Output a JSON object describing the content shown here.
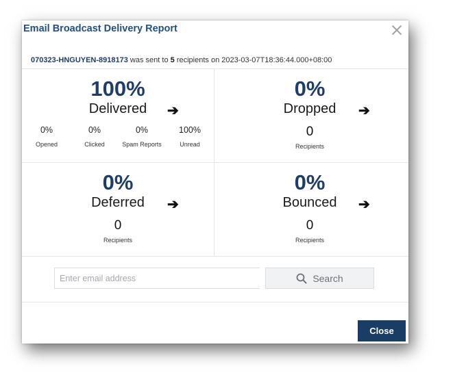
{
  "dialog": {
    "title": "Email Broadcast Delivery Report",
    "summary": {
      "reference": "070323-HNGUYEN-8918173",
      "text_sent_to": " was sent to ",
      "recipient_count": "5",
      "text_recipients_on": " recipients on ",
      "timestamp": "2023-03-07T18:36:44.000+08:00"
    }
  },
  "panels": {
    "delivered": {
      "percent": "100%",
      "label": "Delivered",
      "metrics": [
        {
          "value": "0%",
          "label": "Opened"
        },
        {
          "value": "0%",
          "label": "Clicked"
        },
        {
          "value": "0%",
          "label": "Spam Reports"
        },
        {
          "value": "100%",
          "label": "Unread"
        }
      ]
    },
    "dropped": {
      "percent": "0%",
      "label": "Dropped",
      "count": "0",
      "count_label": "Recipients"
    },
    "deferred": {
      "percent": "0%",
      "label": "Deferred",
      "count": "0",
      "count_label": "Recipients"
    },
    "bounced": {
      "percent": "0%",
      "label": "Bounced",
      "count": "0",
      "count_label": "Recipients"
    }
  },
  "arrow_glyph": "➔",
  "search": {
    "placeholder": "Enter email address",
    "button_label": "Search"
  },
  "footer": {
    "close_label": "Close"
  },
  "colors": {
    "accent": "#1f3d6b",
    "title": "#1f4f86",
    "close_button": "#1a3d66"
  }
}
